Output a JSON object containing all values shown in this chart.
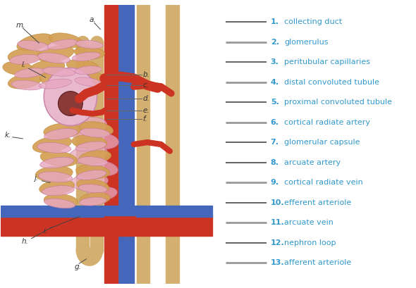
{
  "bg_color": "#ffffff",
  "legend_items": [
    {
      "num": "1.",
      "text": "collecting duct",
      "line_color": "#555555",
      "lw": 1.3
    },
    {
      "num": "2.",
      "text": "glomerulus",
      "line_color": "#999999",
      "lw": 2.0
    },
    {
      "num": "3.",
      "text": "peritubular capillaries",
      "line_color": "#555555",
      "lw": 1.3
    },
    {
      "num": "4.",
      "text": "distal convoluted tubule",
      "line_color": "#999999",
      "lw": 2.0
    },
    {
      "num": "5.",
      "text": "proximal convoluted tubule",
      "line_color": "#555555",
      "lw": 1.3
    },
    {
      "num": "6.",
      "text": "cortical radiate artery",
      "line_color": "#999999",
      "lw": 2.0
    },
    {
      "num": "7.",
      "text": "glomerular capsule",
      "line_color": "#555555",
      "lw": 1.3
    },
    {
      "num": "8.",
      "text": "arcuate artery",
      "line_color": "#555555",
      "lw": 1.3
    },
    {
      "num": "9.",
      "text": "cortical radiate vein",
      "line_color": "#999999",
      "lw": 2.0
    },
    {
      "num": "10.",
      "text": "efferent arteriole",
      "line_color": "#555555",
      "lw": 1.3
    },
    {
      "num": "11.",
      "text": "arcuate vein",
      "line_color": "#999999",
      "lw": 2.0
    },
    {
      "num": "12.",
      "text": "nephron loop",
      "line_color": "#555555",
      "lw": 1.3
    },
    {
      "num": "13.",
      "text": "afferent arteriole",
      "line_color": "#999999",
      "lw": 2.0
    }
  ],
  "label_color": "#3399cc",
  "num_color": "#3399cc",
  "label_fontsize": 8.0,
  "num_fontsize": 8.0,
  "tubule_color": "#d4a055",
  "tubule_edge": "#c09040",
  "capsule_color": "#e8b8cc",
  "capsule_edge": "#cc88aa",
  "pink_color": "#e8a8c0",
  "pink_edge": "#c070a0",
  "glom_color": "#8b3a3a",
  "glom_edge": "#5a1a1a",
  "blue_color": "#4466bb",
  "red_color": "#cc3322",
  "tan_color": "#d4b070"
}
